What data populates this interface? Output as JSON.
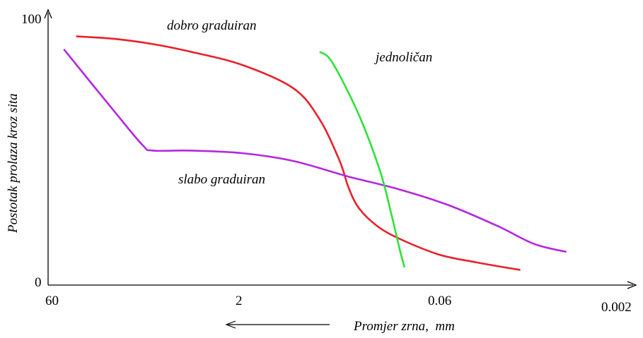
{
  "chart_data": {
    "type": "line",
    "title": "",
    "xlabel": "Promjer zrna,  mm",
    "ylabel": "Postotak prolaza kroz sita",
    "x_scale": "log",
    "x_direction": "decreasing",
    "xlim": [
      60,
      0.002
    ],
    "ylim": [
      0,
      100
    ],
    "x_ticks": [
      "60",
      "2",
      "0.06",
      "0.002"
    ],
    "y_ticks": [
      "0",
      "100"
    ],
    "grid": false,
    "legend": "none",
    "series": [
      {
        "name": "dobro graduiran",
        "color": "#e8202a",
        "points": [
          [
            40,
            92
          ],
          [
            20,
            91
          ],
          [
            10,
            89
          ],
          [
            5,
            86
          ],
          [
            2,
            81
          ],
          [
            0.8,
            72
          ],
          [
            0.5,
            60
          ],
          [
            0.35,
            44
          ],
          [
            0.3,
            34
          ],
          [
            0.25,
            26
          ],
          [
            0.18,
            19
          ],
          [
            0.12,
            14
          ],
          [
            0.06,
            8
          ],
          [
            0.03,
            5
          ],
          [
            0.013,
            2
          ]
        ]
      },
      {
        "name": "slabo graduiran",
        "color": "#b428e0",
        "points": [
          [
            50,
            87
          ],
          [
            20,
            63
          ],
          [
            12,
            50
          ],
          [
            10,
            48
          ],
          [
            5,
            48
          ],
          [
            2,
            47
          ],
          [
            0.8,
            44
          ],
          [
            0.3,
            38
          ],
          [
            0.12,
            33
          ],
          [
            0.05,
            27
          ],
          [
            0.02,
            19
          ],
          [
            0.01,
            12
          ],
          [
            0.0055,
            9
          ]
        ]
      },
      {
        "name": "jednoličan",
        "color": "#2ee23a",
        "points": [
          [
            0.5,
            86
          ],
          [
            0.4,
            82
          ],
          [
            0.25,
            62
          ],
          [
            0.17,
            40
          ],
          [
            0.14,
            24
          ],
          [
            0.12,
            10
          ],
          [
            0.11,
            3
          ]
        ]
      }
    ],
    "annotations": {
      "direction_arrow": "pointing toward larger grain sizes"
    }
  }
}
